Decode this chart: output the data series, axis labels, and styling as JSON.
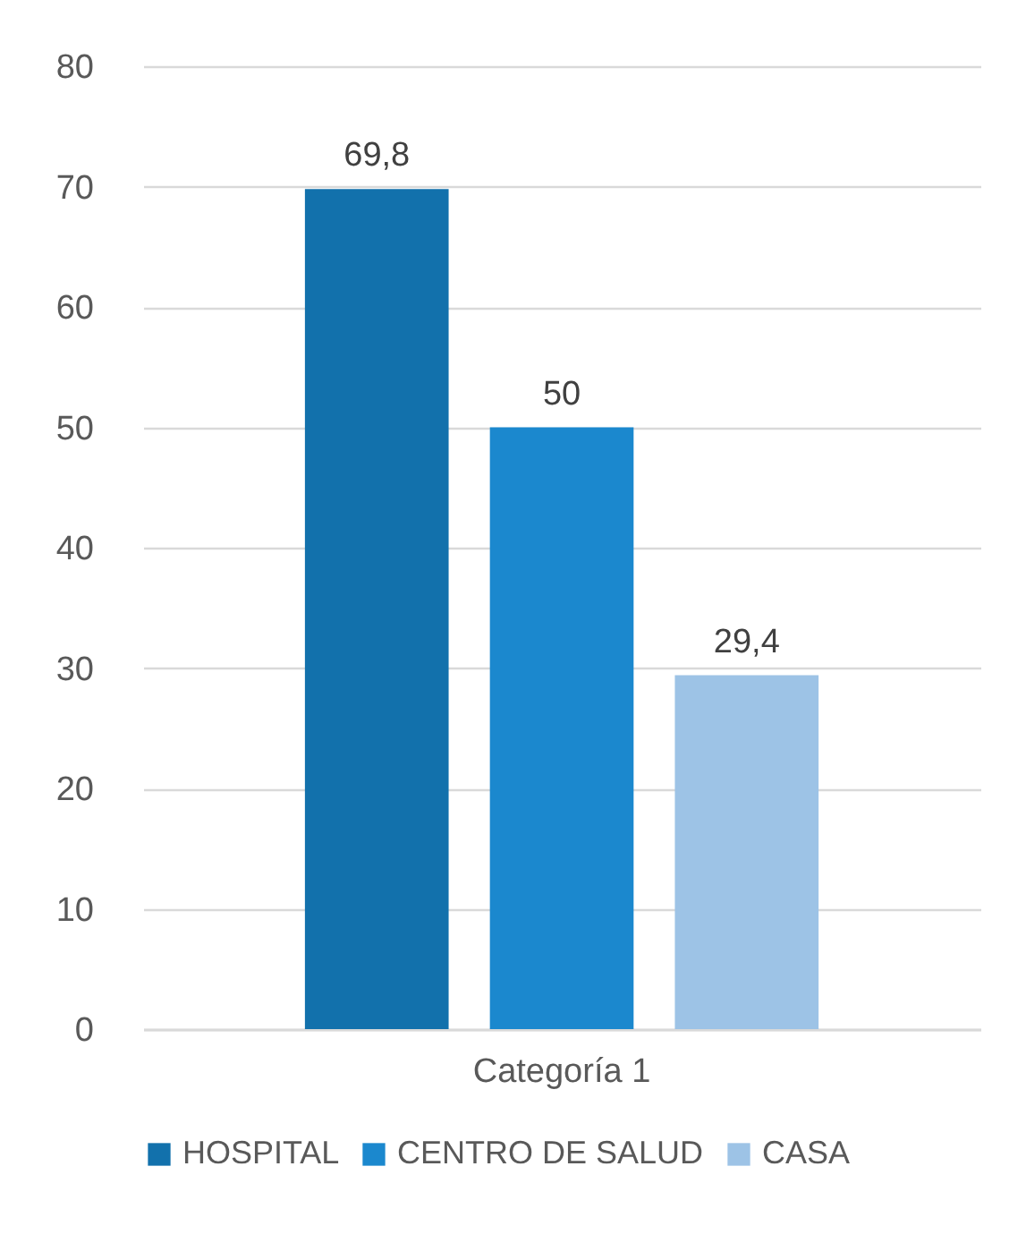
{
  "chart_data": {
    "type": "bar",
    "categories": [
      "Categoría 1"
    ],
    "series": [
      {
        "name": "HOSPITAL",
        "color": "#1271ac",
        "values": [
          69.8
        ],
        "value_labels": [
          "69,8"
        ]
      },
      {
        "name": "CENTRO DE SALUD",
        "color": "#1b88ce",
        "values": [
          50
        ],
        "value_labels": [
          "50"
        ]
      },
      {
        "name": "CASA",
        "color": "#9dc3e6",
        "values": [
          29.4
        ],
        "value_labels": [
          "29,4"
        ]
      }
    ],
    "ylim": [
      0,
      80
    ],
    "yticks": [
      0,
      10,
      20,
      30,
      40,
      50,
      60,
      70,
      80
    ],
    "grid": "y",
    "legend": "bottom"
  }
}
